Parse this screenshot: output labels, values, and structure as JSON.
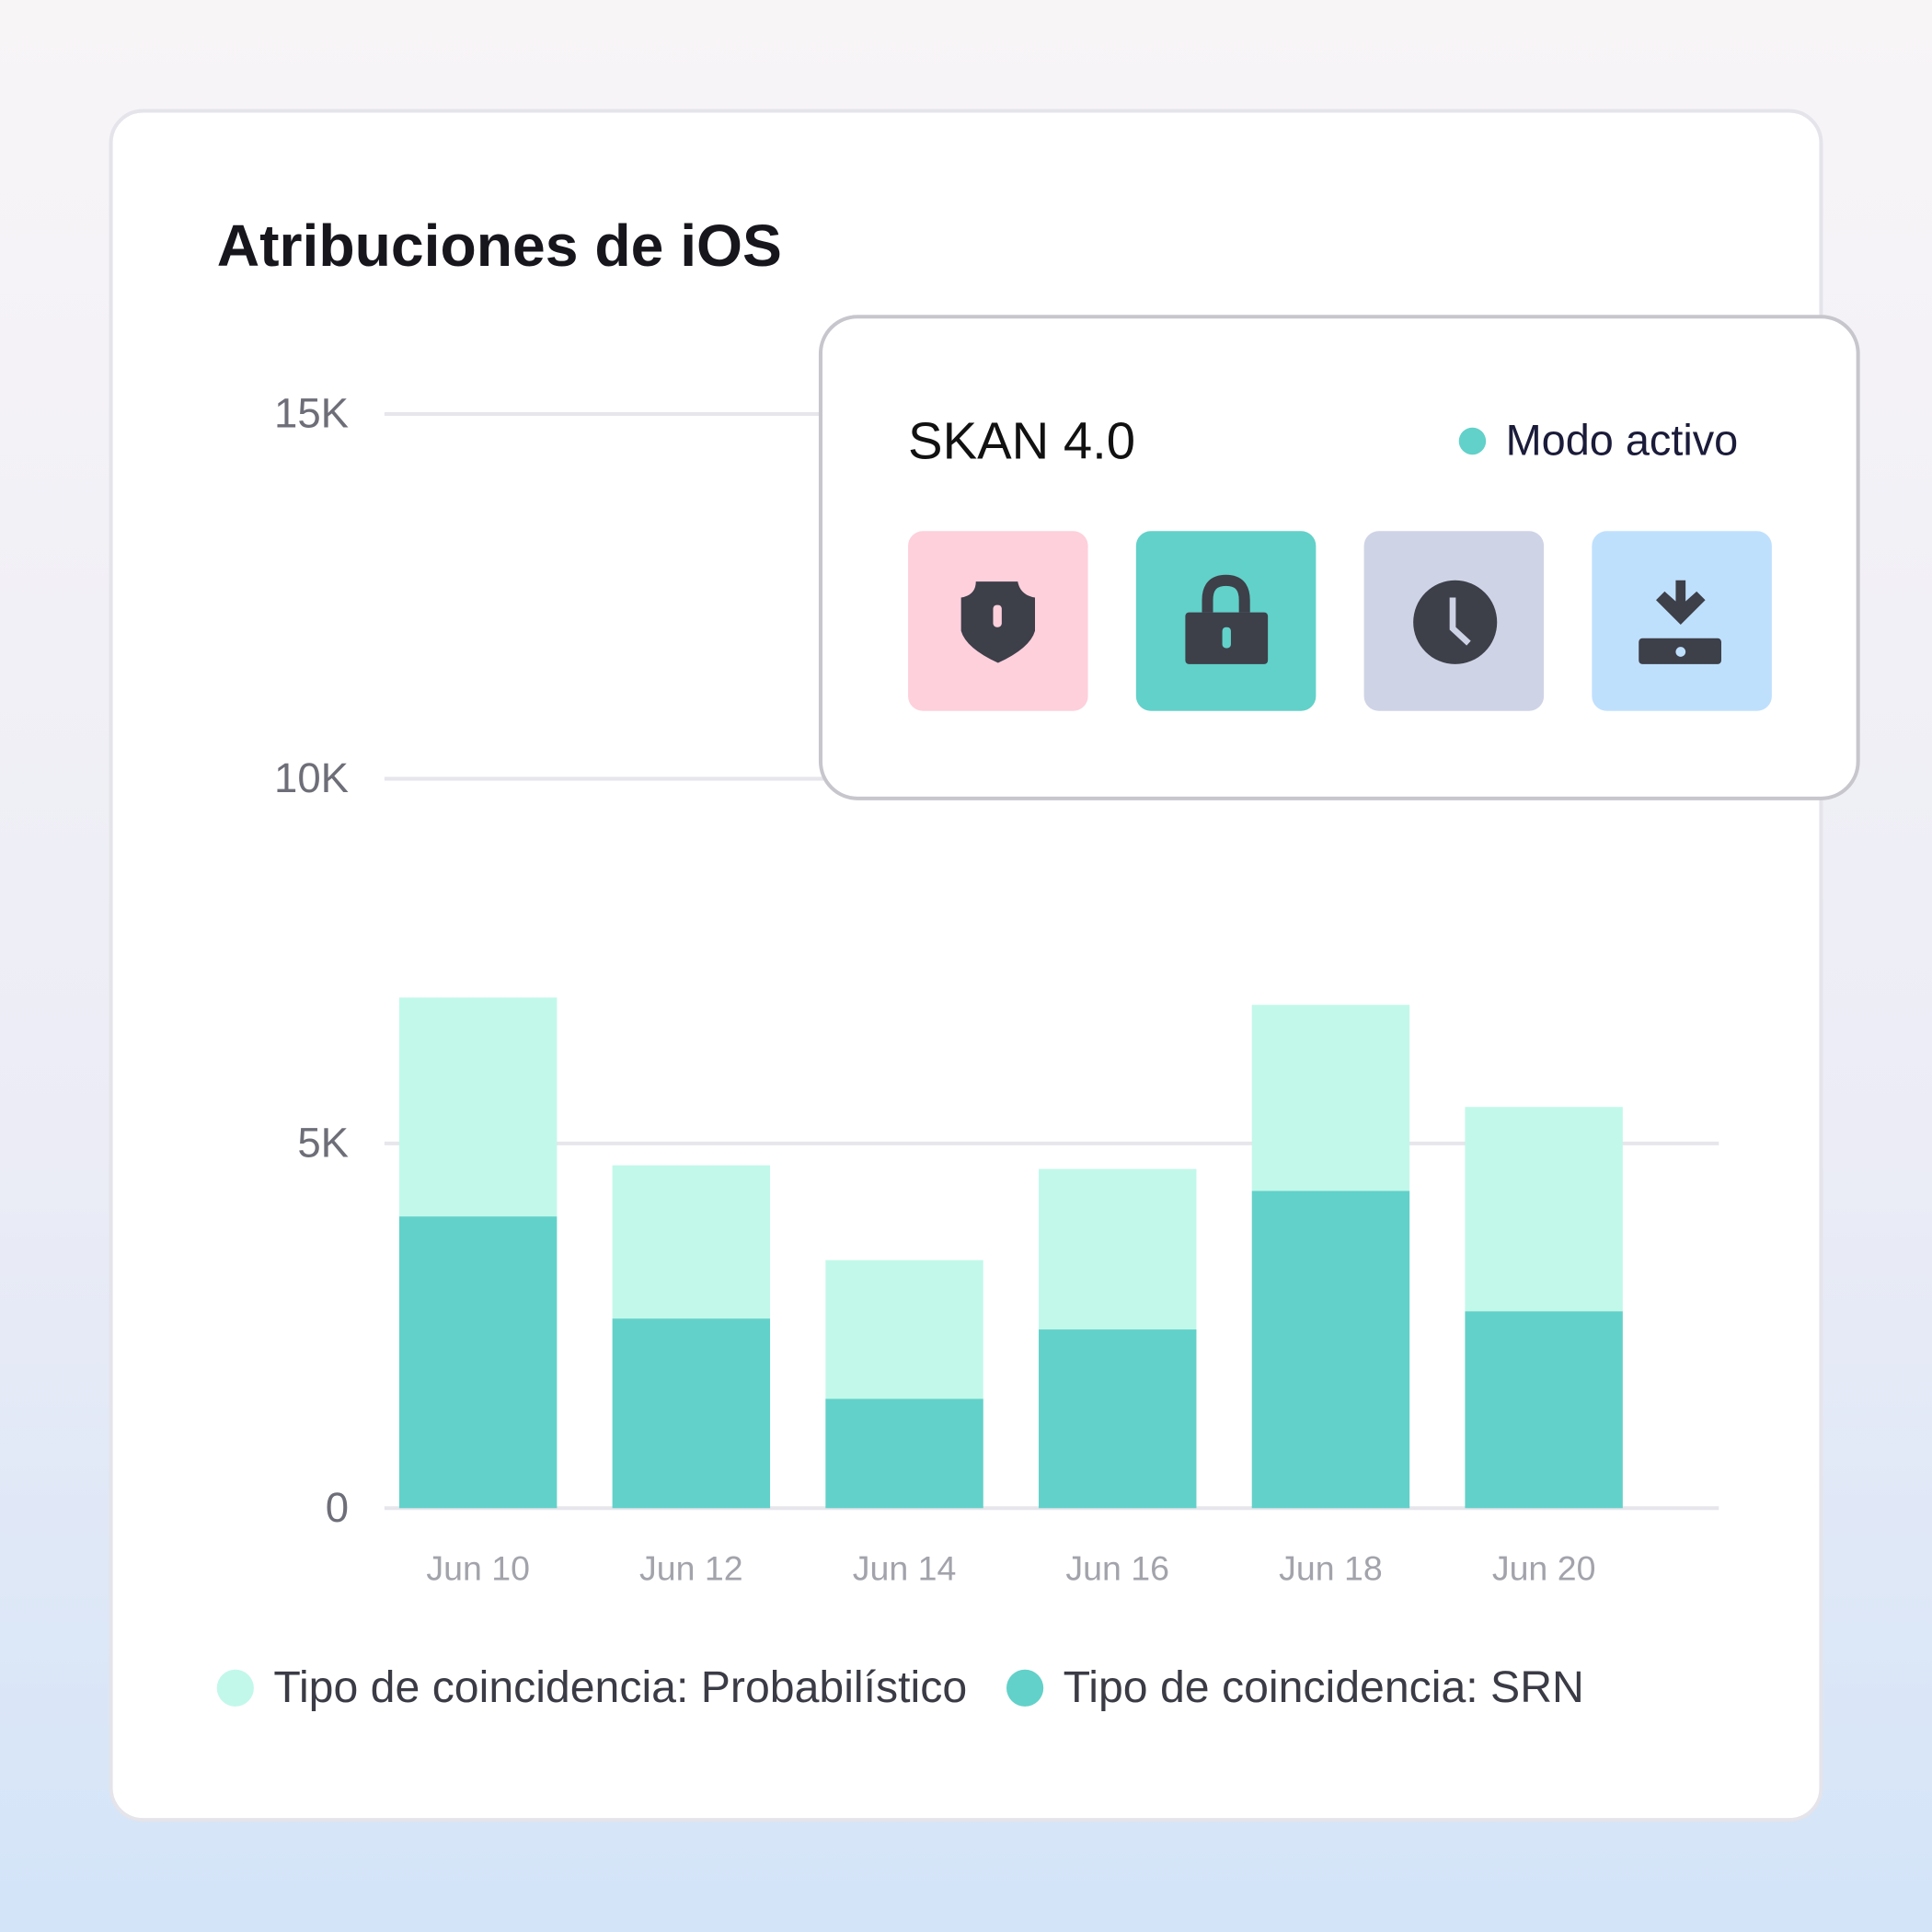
{
  "chart_data": {
    "type": "stacked-bar",
    "title": "Atribuciones de iOS",
    "categories": [
      "Jun 10",
      "Jun 12",
      "Jun 14",
      "Jun 16",
      "Jun 18",
      "Jun 20"
    ],
    "series": [
      {
        "name": "Tipo de coincidencia: Probabilístico",
        "color": "#c2f8ea",
        "values": [
          3000,
          2100,
          1900,
          2200,
          2550,
          2800
        ]
      },
      {
        "name": "Tipo de coincidencia: SRN",
        "color": "#62d1c9",
        "values": [
          4000,
          2600,
          1500,
          2450,
          4350,
          2700
        ]
      }
    ],
    "ylim": [
      0,
      15000
    ],
    "yticks": [
      0,
      {
        "value": 5000,
        "label": "5K"
      },
      {
        "value": 10000,
        "label": "10K"
      },
      {
        "value": 15000,
        "label": "15K"
      }
    ],
    "grid": true
  },
  "skan_card": {
    "title": "SKAN 4.0",
    "status": "Modo activo"
  }
}
